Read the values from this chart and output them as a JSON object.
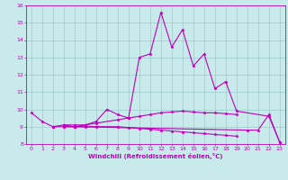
{
  "title": "",
  "xlabel": "Windchill (Refroidissement éolien,°C)",
  "ylabel": "",
  "bg_color": "#c8eaea",
  "grid_color": "#99cccc",
  "line_color": "#bb00bb",
  "xlim": [
    -0.5,
    23.5
  ],
  "ylim": [
    8,
    16
  ],
  "xticks": [
    0,
    1,
    2,
    3,
    4,
    5,
    6,
    7,
    8,
    9,
    10,
    11,
    12,
    13,
    14,
    15,
    16,
    17,
    18,
    19,
    20,
    21,
    22,
    23
  ],
  "yticks": [
    8,
    9,
    10,
    11,
    12,
    13,
    14,
    15,
    16
  ],
  "line1_x": [
    0,
    1,
    2,
    3,
    4,
    5,
    6,
    7,
    8,
    9,
    10,
    11,
    12,
    13,
    14,
    15,
    16,
    17,
    18,
    19,
    22,
    23
  ],
  "line1_y": [
    9.8,
    9.3,
    9.0,
    9.0,
    9.0,
    9.1,
    9.3,
    10.0,
    9.7,
    9.5,
    13.0,
    13.2,
    15.6,
    13.6,
    14.6,
    12.5,
    13.2,
    11.2,
    11.6,
    9.9,
    9.6,
    8.1
  ],
  "line2_x": [
    3,
    4,
    5,
    6,
    8,
    9,
    10,
    11,
    12,
    13,
    14,
    15,
    16,
    17,
    18,
    19
  ],
  "line2_y": [
    9.1,
    9.1,
    9.1,
    9.2,
    9.4,
    9.5,
    9.6,
    9.7,
    9.8,
    9.85,
    9.9,
    9.85,
    9.8,
    9.8,
    9.75,
    9.7
  ],
  "line3_x": [
    3,
    4,
    5,
    6,
    8,
    9,
    10,
    11,
    12,
    13,
    14,
    15,
    16,
    17,
    18,
    19
  ],
  "line3_y": [
    9.0,
    9.0,
    9.0,
    9.0,
    9.0,
    8.95,
    8.9,
    8.85,
    8.8,
    8.75,
    8.7,
    8.65,
    8.6,
    8.55,
    8.5,
    8.45
  ],
  "line4_x": [
    2,
    3,
    4,
    20,
    21,
    22,
    23
  ],
  "line4_y": [
    9.0,
    9.1,
    9.0,
    8.8,
    8.8,
    9.7,
    8.1
  ]
}
